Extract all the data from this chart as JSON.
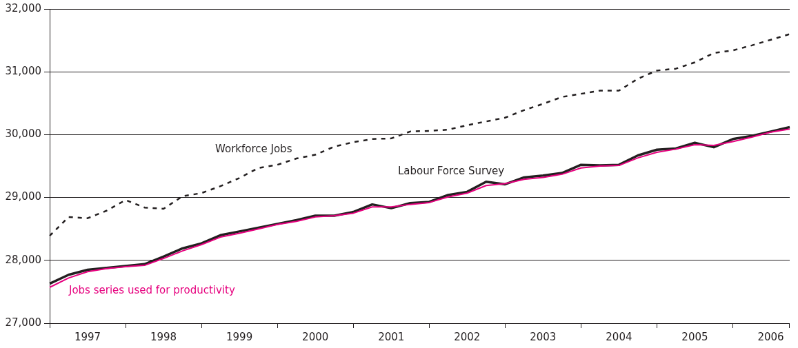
{
  "chart_data": {
    "type": "line",
    "categories": [
      null,
      null,
      "1997",
      null,
      null,
      null,
      "1998",
      null,
      null,
      null,
      "1999",
      null,
      null,
      null,
      "2000",
      null,
      null,
      null,
      "2001",
      null,
      null,
      null,
      "2002",
      null,
      null,
      null,
      "2003",
      null,
      null,
      null,
      "2004",
      null,
      null,
      null,
      "2005",
      null,
      null,
      null,
      "2006",
      null
    ],
    "series": [
      {
        "name": "Workforce Jobs",
        "color": "#231f20",
        "line_style": "dashed",
        "values": [
          28390,
          28690,
          28670,
          28790,
          28960,
          28840,
          28820,
          29020,
          29070,
          29180,
          29310,
          29470,
          29520,
          29620,
          29680,
          29810,
          29880,
          29930,
          29940,
          30050,
          30060,
          30080,
          30150,
          30210,
          30270,
          30390,
          30490,
          30600,
          30650,
          30700,
          30700,
          30890,
          31020,
          31050,
          31150,
          31300,
          31340,
          31420,
          31510,
          31600
        ]
      },
      {
        "name": "Labour Force Survey",
        "color": "#231f20",
        "line_style": "solid",
        "values": [
          27630,
          27770,
          27850,
          27880,
          27910,
          27940,
          28060,
          28190,
          28270,
          28400,
          28460,
          28520,
          28580,
          28640,
          28710,
          28710,
          28770,
          28890,
          28830,
          28910,
          28930,
          29040,
          29090,
          29250,
          29210,
          29320,
          29350,
          29390,
          29520,
          29510,
          29520,
          29670,
          29760,
          29780,
          29870,
          29800,
          29930,
          29980,
          30050,
          30120
        ]
      },
      {
        "name": "Jobs series used for productivity",
        "color": "#e6007e",
        "line_style": "solid",
        "values": [
          27570,
          27720,
          27820,
          27870,
          27900,
          27920,
          28030,
          28150,
          28250,
          28370,
          28430,
          28500,
          28570,
          28620,
          28690,
          28710,
          28750,
          28850,
          28850,
          28890,
          28920,
          29010,
          29070,
          29190,
          29220,
          29290,
          29320,
          29370,
          29470,
          29500,
          29510,
          29630,
          29720,
          29770,
          29840,
          29830,
          29890,
          29960,
          30040,
          30090
        ]
      }
    ],
    "ylim": [
      27000,
      32000
    ],
    "yticks": [
      {
        "value": 27000,
        "label": "27,000"
      },
      {
        "value": 28000,
        "label": "28,000"
      },
      {
        "value": 29000,
        "label": "29,000"
      },
      {
        "value": 30000,
        "label": "30,000"
      },
      {
        "value": 31000,
        "label": "31,000"
      },
      {
        "value": 32000,
        "label": "32,000"
      }
    ],
    "grid": "y",
    "legend": false,
    "marker": "none"
  }
}
